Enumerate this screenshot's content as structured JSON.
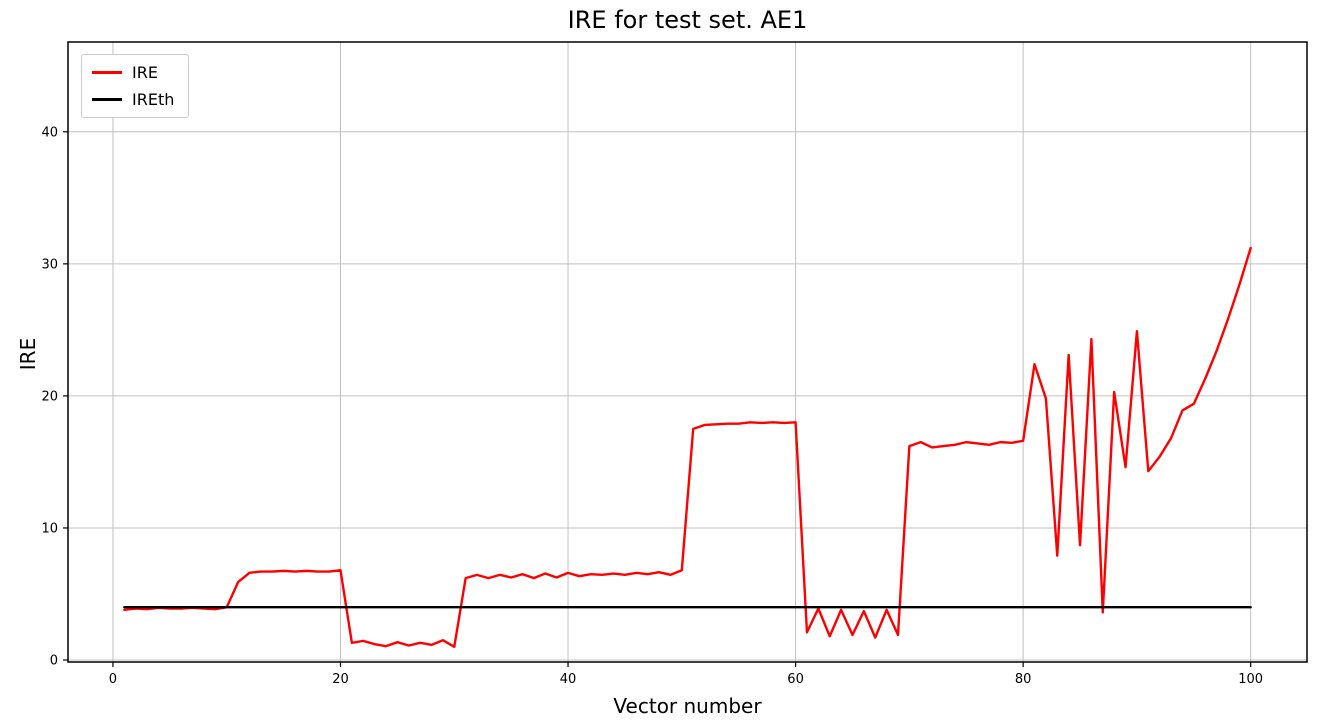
{
  "chart_data": {
    "type": "line",
    "title": "IRE for test set. AE1",
    "xlabel": "Vector number",
    "ylabel": "IRE",
    "xlim": [
      -3.95,
      104.95
    ],
    "ylim": [
      -0.15,
      46.8
    ],
    "xticks": [
      0,
      20,
      40,
      60,
      80,
      100
    ],
    "yticks": [
      0,
      10,
      20,
      30,
      40
    ],
    "grid": true,
    "grid_color": "#c0c0c0",
    "legend_position": "upper left",
    "x_start": 1,
    "series": [
      {
        "name": "IRE",
        "color": "#ff0000",
        "values": [
          3.8,
          3.9,
          3.85,
          3.95,
          3.9,
          3.9,
          3.95,
          3.9,
          3.85,
          4.0,
          5.9,
          6.6,
          6.7,
          6.7,
          6.75,
          6.7,
          6.75,
          6.7,
          6.7,
          6.8,
          1.3,
          1.45,
          1.2,
          1.05,
          1.35,
          1.1,
          1.3,
          1.15,
          1.5,
          1.0,
          6.2,
          6.45,
          6.2,
          6.45,
          6.25,
          6.5,
          6.2,
          6.55,
          6.25,
          6.6,
          6.35,
          6.5,
          6.45,
          6.55,
          6.45,
          6.6,
          6.5,
          6.65,
          6.45,
          6.8,
          17.5,
          17.8,
          17.85,
          17.9,
          17.9,
          18.0,
          17.95,
          18.0,
          17.95,
          18.0,
          2.1,
          3.9,
          1.8,
          3.8,
          1.9,
          3.7,
          1.7,
          3.8,
          1.9,
          16.2,
          16.5,
          16.1,
          16.2,
          16.3,
          16.5,
          16.4,
          16.3,
          16.5,
          16.45,
          16.6,
          22.4,
          19.8,
          7.9,
          23.1,
          8.7,
          24.3,
          3.6,
          20.3,
          14.6,
          24.9,
          14.3,
          15.4,
          16.8,
          18.9,
          19.4,
          21.3,
          23.4,
          25.8,
          28.4,
          31.2
        ]
      },
      {
        "name": "IREth",
        "color": "#000000",
        "constant": 4.0
      }
    ]
  }
}
